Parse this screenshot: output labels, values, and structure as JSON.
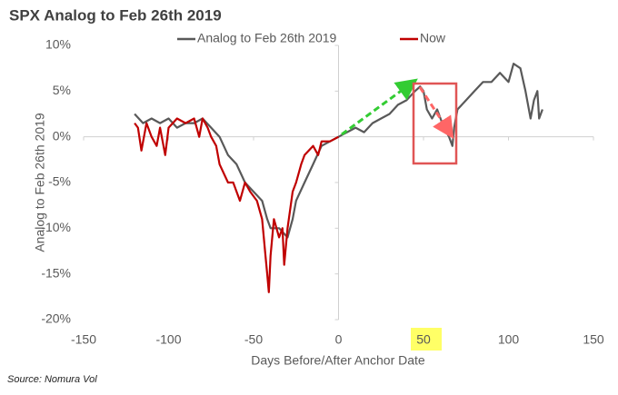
{
  "chart_data": {
    "type": "line",
    "title": "SPX Analog to Feb 26th 2019",
    "x_label": "Days Before/After Anchor Date",
    "y_label": "Analog to Feb 26th 2019",
    "source": "Source: Nomura Vol",
    "xlim": [
      -150,
      150
    ],
    "xticks": [
      -150,
      -100,
      -50,
      0,
      50,
      100,
      150
    ],
    "ylim": [
      -20,
      10
    ],
    "yticks": [
      {
        "value": -20,
        "label": "-20%"
      },
      {
        "value": -15,
        "label": "-15%"
      },
      {
        "value": -10,
        "label": "-10%"
      },
      {
        "value": -5,
        "label": "-5%"
      },
      {
        "value": 0,
        "label": "0%"
      },
      {
        "value": 5,
        "label": "5%"
      },
      {
        "value": 10,
        "label": "10%"
      }
    ],
    "legend": "top",
    "series": [
      {
        "name": "Analog to Feb 26th 2019",
        "color": "#595959",
        "x": [
          -120,
          -115,
          -110,
          -105,
          -100,
          -95,
          -90,
          -85,
          -80,
          -75,
          -70,
          -65,
          -60,
          -55,
          -50,
          -45,
          -42,
          -40,
          -35,
          -30,
          -27,
          -25,
          -20,
          -15,
          -10,
          -5,
          0,
          5,
          10,
          15,
          20,
          25,
          30,
          35,
          40,
          45,
          48,
          50,
          52,
          55,
          58,
          60,
          62,
          65,
          67,
          68,
          70,
          75,
          80,
          85,
          90,
          95,
          100,
          103,
          107,
          110,
          113,
          115,
          117,
          118,
          120
        ],
        "values": [
          2.5,
          1.5,
          2,
          1.5,
          2,
          1,
          1.5,
          1.5,
          2,
          1,
          0,
          -2,
          -3,
          -5,
          -6,
          -7,
          -9,
          -10,
          -10,
          -11,
          -9,
          -7,
          -5,
          -3,
          -1,
          -0.5,
          0,
          0.5,
          1,
          0.5,
          1.5,
          2,
          2.5,
          3.5,
          4,
          5,
          5.5,
          5,
          3,
          2,
          3,
          2,
          1,
          0,
          -1,
          1,
          3,
          4,
          5,
          6,
          6,
          7,
          6,
          8,
          7.5,
          5,
          2,
          4,
          5,
          2,
          3
        ]
      },
      {
        "name": "Now",
        "color": "#c00000",
        "x": [
          -120,
          -118,
          -116,
          -113,
          -110,
          -107,
          -105,
          -102,
          -100,
          -95,
          -90,
          -85,
          -82,
          -80,
          -77,
          -75,
          -72,
          -70,
          -65,
          -62,
          -58,
          -55,
          -52,
          -48,
          -45,
          -43,
          -42,
          -41,
          -40,
          -38,
          -35,
          -33,
          -32,
          -30,
          -27,
          -25,
          -22,
          -20,
          -15,
          -12,
          -10,
          -5,
          0
        ],
        "values": [
          1.5,
          1,
          -1.5,
          1.5,
          0,
          -1,
          1,
          -2,
          1,
          2,
          1.5,
          2,
          0,
          2,
          1,
          0,
          -1,
          -3,
          -5,
          -5,
          -7,
          -5,
          -6,
          -7,
          -9,
          -13,
          -15,
          -17,
          -13,
          -9,
          -11,
          -10,
          -14,
          -10,
          -6,
          -5,
          -3,
          -2,
          -1,
          -2,
          -0.5,
          -0.5,
          0
        ]
      }
    ]
  }
}
